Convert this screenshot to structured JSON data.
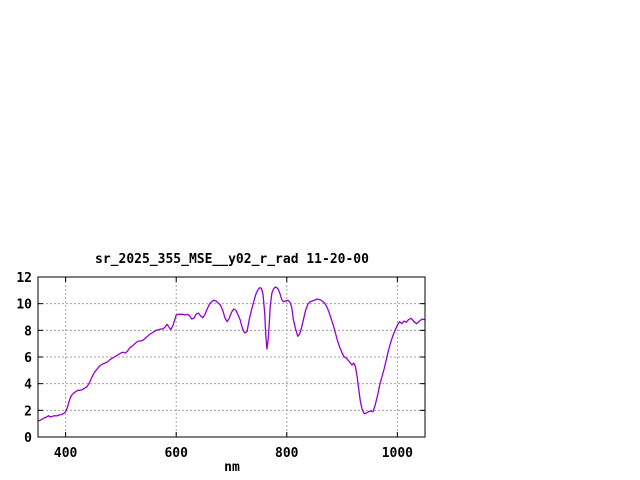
{
  "window": {
    "background": "#FFFFFF"
  },
  "chart_data": {
    "type": "line",
    "title": "sr_2025_355_MSE__y02_r_rad 11-20-00",
    "xlabel": "nm",
    "ylabel": "",
    "xlim": [
      350,
      1050
    ],
    "ylim": [
      0,
      12
    ],
    "xticks": [
      400,
      600,
      800,
      1000
    ],
    "yticks": [
      0,
      2,
      4,
      6,
      8,
      10,
      12
    ],
    "grid": "dashed major ticks",
    "legend_position": "none",
    "colors": {
      "line": "#9400D3",
      "grid": "#A0A0A0",
      "axis": "#000000",
      "text": "#000000",
      "background": "#FFFFFF"
    },
    "series": [
      {
        "name": "sr_2025_355_MSE__y02_r_rad",
        "points": [
          [
            350,
            1.2
          ],
          [
            354,
            1.25
          ],
          [
            358,
            1.35
          ],
          [
            362,
            1.45
          ],
          [
            366,
            1.5
          ],
          [
            369,
            1.6
          ],
          [
            372,
            1.5
          ],
          [
            376,
            1.55
          ],
          [
            380,
            1.6
          ],
          [
            384,
            1.58
          ],
          [
            388,
            1.65
          ],
          [
            392,
            1.68
          ],
          [
            396,
            1.75
          ],
          [
            400,
            1.9
          ],
          [
            403,
            2.2
          ],
          [
            406,
            2.65
          ],
          [
            409,
            3.0
          ],
          [
            412,
            3.2
          ],
          [
            415,
            3.3
          ],
          [
            418,
            3.4
          ],
          [
            422,
            3.5
          ],
          [
            426,
            3.5
          ],
          [
            430,
            3.55
          ],
          [
            434,
            3.65
          ],
          [
            438,
            3.75
          ],
          [
            442,
            4.0
          ],
          [
            446,
            4.35
          ],
          [
            450,
            4.7
          ],
          [
            453,
            4.9
          ],
          [
            456,
            5.05
          ],
          [
            460,
            5.25
          ],
          [
            464,
            5.4
          ],
          [
            468,
            5.5
          ],
          [
            472,
            5.55
          ],
          [
            476,
            5.65
          ],
          [
            480,
            5.8
          ],
          [
            484,
            5.9
          ],
          [
            488,
            6.0
          ],
          [
            492,
            6.1
          ],
          [
            496,
            6.2
          ],
          [
            500,
            6.3
          ],
          [
            504,
            6.35
          ],
          [
            508,
            6.3
          ],
          [
            512,
            6.45
          ],
          [
            516,
            6.7
          ],
          [
            520,
            6.8
          ],
          [
            524,
            6.95
          ],
          [
            528,
            7.1
          ],
          [
            532,
            7.2
          ],
          [
            536,
            7.2
          ],
          [
            540,
            7.25
          ],
          [
            544,
            7.4
          ],
          [
            548,
            7.55
          ],
          [
            552,
            7.7
          ],
          [
            556,
            7.8
          ],
          [
            560,
            7.9
          ],
          [
            564,
            8.0
          ],
          [
            568,
            8.05
          ],
          [
            572,
            8.1
          ],
          [
            576,
            8.1
          ],
          [
            580,
            8.25
          ],
          [
            583,
            8.45
          ],
          [
            586,
            8.3
          ],
          [
            590,
            8.05
          ],
          [
            594,
            8.35
          ],
          [
            597,
            8.75
          ],
          [
            600,
            9.15
          ],
          [
            604,
            9.2
          ],
          [
            608,
            9.2
          ],
          [
            612,
            9.2
          ],
          [
            616,
            9.15
          ],
          [
            620,
            9.2
          ],
          [
            624,
            9.1
          ],
          [
            628,
            8.85
          ],
          [
            632,
            8.9
          ],
          [
            636,
            9.2
          ],
          [
            640,
            9.3
          ],
          [
            644,
            9.1
          ],
          [
            648,
            8.95
          ],
          [
            652,
            9.2
          ],
          [
            656,
            9.6
          ],
          [
            660,
            9.95
          ],
          [
            664,
            10.15
          ],
          [
            668,
            10.25
          ],
          [
            672,
            10.2
          ],
          [
            676,
            10.05
          ],
          [
            680,
            9.9
          ],
          [
            684,
            9.5
          ],
          [
            688,
            8.95
          ],
          [
            692,
            8.65
          ],
          [
            696,
            8.9
          ],
          [
            700,
            9.35
          ],
          [
            704,
            9.6
          ],
          [
            708,
            9.5
          ],
          [
            712,
            9.15
          ],
          [
            716,
            8.75
          ],
          [
            720,
            8.1
          ],
          [
            724,
            7.8
          ],
          [
            728,
            7.9
          ],
          [
            732,
            8.8
          ],
          [
            736,
            9.5
          ],
          [
            740,
            10.1
          ],
          [
            744,
            10.7
          ],
          [
            748,
            11.05
          ],
          [
            751,
            11.2
          ],
          [
            754,
            11.15
          ],
          [
            757,
            10.7
          ],
          [
            760,
            9.3
          ],
          [
            762,
            7.6
          ],
          [
            764,
            6.6
          ],
          [
            766,
            7.2
          ],
          [
            768,
            8.3
          ],
          [
            770,
            9.8
          ],
          [
            773,
            10.8
          ],
          [
            776,
            11.1
          ],
          [
            779,
            11.25
          ],
          [
            782,
            11.2
          ],
          [
            785,
            11.05
          ],
          [
            788,
            10.7
          ],
          [
            791,
            10.3
          ],
          [
            794,
            10.15
          ],
          [
            798,
            10.2
          ],
          [
            802,
            10.25
          ],
          [
            806,
            10.1
          ],
          [
            809,
            9.7
          ],
          [
            812,
            8.8
          ],
          [
            816,
            8.1
          ],
          [
            820,
            7.55
          ],
          [
            823,
            7.7
          ],
          [
            826,
            8.1
          ],
          [
            830,
            8.8
          ],
          [
            834,
            9.5
          ],
          [
            838,
            9.95
          ],
          [
            842,
            10.15
          ],
          [
            846,
            10.2
          ],
          [
            850,
            10.25
          ],
          [
            855,
            10.35
          ],
          [
            860,
            10.3
          ],
          [
            864,
            10.2
          ],
          [
            868,
            10.05
          ],
          [
            872,
            9.8
          ],
          [
            876,
            9.4
          ],
          [
            880,
            8.9
          ],
          [
            884,
            8.4
          ],
          [
            888,
            7.8
          ],
          [
            892,
            7.2
          ],
          [
            896,
            6.7
          ],
          [
            900,
            6.3
          ],
          [
            904,
            6.0
          ],
          [
            908,
            5.9
          ],
          [
            912,
            5.7
          ],
          [
            915,
            5.55
          ],
          [
            918,
            5.4
          ],
          [
            921,
            5.55
          ],
          [
            924,
            5.3
          ],
          [
            927,
            4.6
          ],
          [
            930,
            3.6
          ],
          [
            933,
            2.7
          ],
          [
            936,
            2.1
          ],
          [
            940,
            1.75
          ],
          [
            944,
            1.8
          ],
          [
            948,
            1.9
          ],
          [
            952,
            1.95
          ],
          [
            956,
            1.9
          ],
          [
            960,
            2.4
          ],
          [
            964,
            3.1
          ],
          [
            968,
            3.9
          ],
          [
            972,
            4.5
          ],
          [
            976,
            5.1
          ],
          [
            980,
            5.8
          ],
          [
            984,
            6.5
          ],
          [
            988,
            7.1
          ],
          [
            992,
            7.6
          ],
          [
            996,
            8.0
          ],
          [
            1000,
            8.4
          ],
          [
            1004,
            8.65
          ],
          [
            1008,
            8.5
          ],
          [
            1012,
            8.7
          ],
          [
            1016,
            8.6
          ],
          [
            1020,
            8.8
          ],
          [
            1025,
            8.9
          ],
          [
            1030,
            8.65
          ],
          [
            1035,
            8.5
          ],
          [
            1040,
            8.7
          ],
          [
            1045,
            8.85
          ],
          [
            1050,
            8.8
          ]
        ]
      }
    ]
  }
}
